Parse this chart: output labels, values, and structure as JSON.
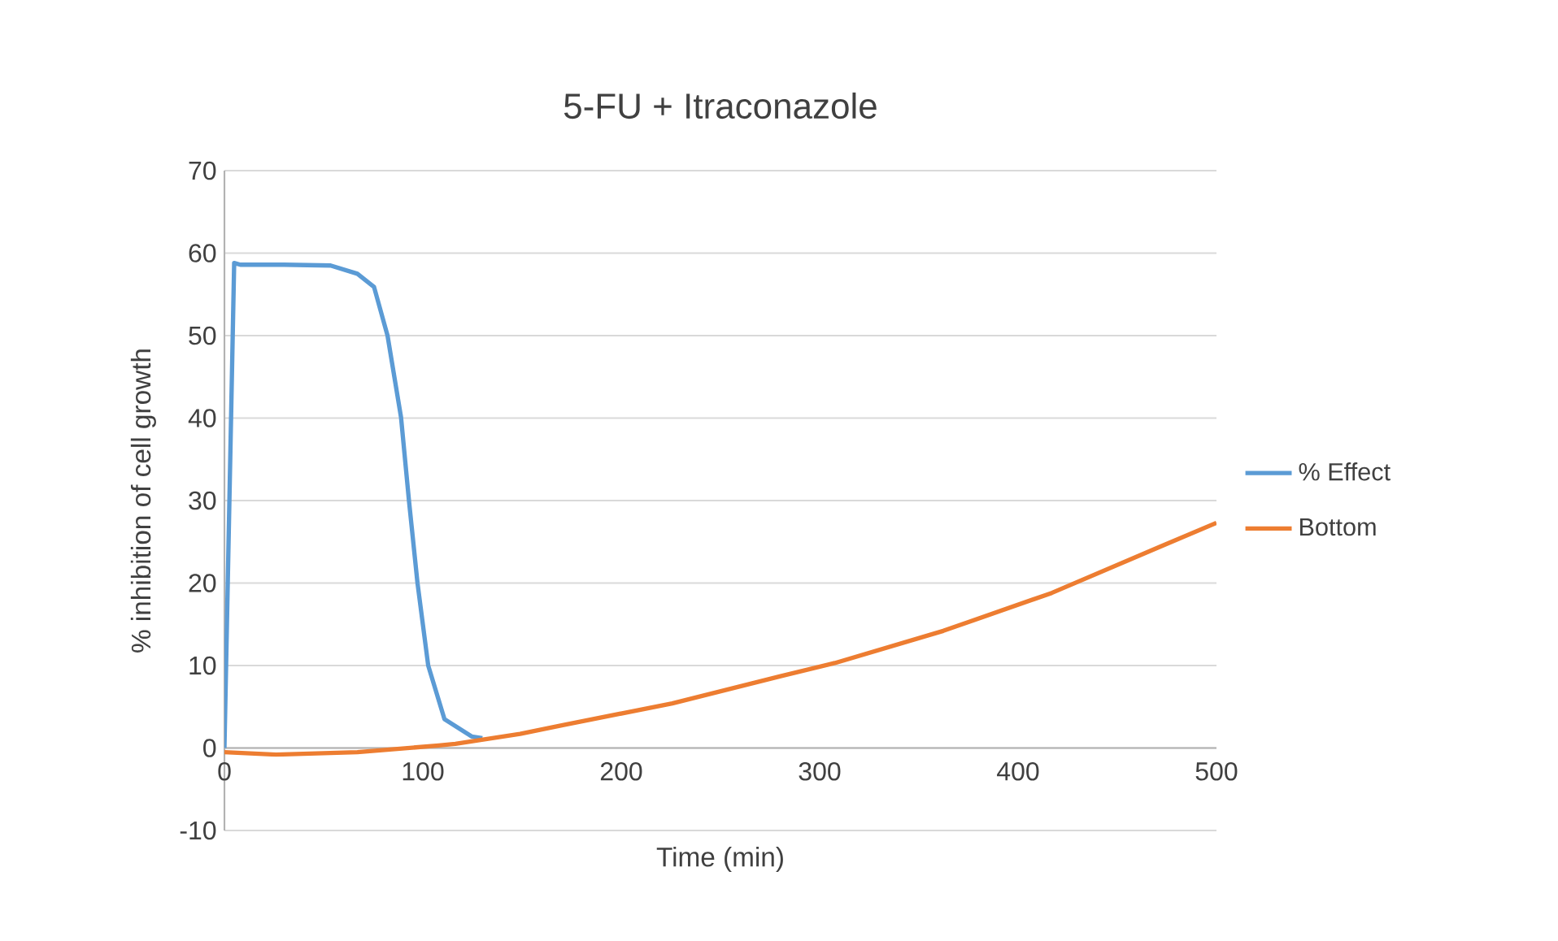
{
  "chart_data": {
    "type": "line",
    "title": "5-FU + Itraconazole",
    "xlabel": "Time (min)",
    "ylabel": "% inhibition of cell growth",
    "xlim": [
      0,
      500
    ],
    "xticks": [
      0,
      100,
      200,
      300,
      400,
      500
    ],
    "ylim": [
      -10,
      70
    ],
    "yticks": [
      -10,
      0,
      10,
      20,
      30,
      40,
      50,
      60,
      70
    ],
    "grid": "y",
    "legend": "right",
    "marker": "none",
    "line_style": "solid",
    "series": [
      {
        "name": "% Effect",
        "color": "#5b9bd5",
        "x": [
          0,
          4.9,
          8,
          30,
          53.5,
          67,
          75.4,
          82.2,
          89,
          93,
          97.3,
          102.7,
          110.9,
          124.6,
          130
        ],
        "values": [
          0,
          58.8,
          58.6,
          58.6,
          58.5,
          57.5,
          55.9,
          50,
          40.1,
          30,
          20,
          10,
          3.5,
          1.4,
          1.2
        ]
      },
      {
        "name": "Bottom",
        "color": "#ed7d31",
        "x": [
          0,
          26,
          67,
          108,
          116.4,
          149,
          171,
          225.7,
          280.3,
          307.6,
          362.3,
          417,
          471.6,
          500
        ],
        "values": [
          -0.5,
          -0.8,
          -0.5,
          0.3,
          0.5,
          1.7,
          2.8,
          5.4,
          8.7,
          10.3,
          14.2,
          18.8,
          24.4,
          27.3
        ]
      }
    ]
  }
}
